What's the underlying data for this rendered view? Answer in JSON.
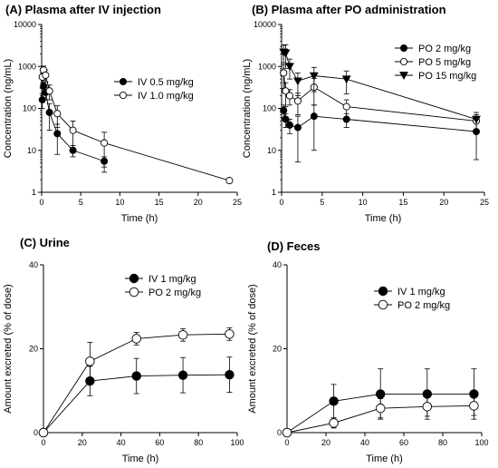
{
  "chart_data": [
    {
      "id": "A",
      "type": "line",
      "title": "(A) Plasma after IV injection",
      "xlabel": "Time (h)",
      "ylabel": "Concentration (ng/mL)",
      "yscale": "log",
      "xlim": [
        0,
        25
      ],
      "ylim": [
        1,
        10000
      ],
      "xticks": [
        0,
        5,
        10,
        15,
        20,
        25
      ],
      "yticks": [
        1,
        10,
        100,
        1000,
        10000
      ],
      "ytick_labels": [
        "1",
        "10",
        "100",
        "1000",
        "10000"
      ],
      "legend_position": "right",
      "series": [
        {
          "name": "IV 0.5  mg/kg",
          "marker": "filled-circle",
          "x": [
            0.083,
            0.25,
            0.5,
            1,
            2,
            4,
            8
          ],
          "y": [
            160,
            340,
            240,
            80,
            25,
            10,
            5.5
          ],
          "err": [
            60,
            120,
            80,
            50,
            17,
            3,
            1.5
          ]
        },
        {
          "name": "IV 1.0 mg/kg",
          "marker": "open-circle",
          "x": [
            0.083,
            0.25,
            0.5,
            1,
            2,
            4,
            8,
            24
          ],
          "y": [
            560,
            820,
            620,
            260,
            75,
            30,
            15,
            1.9
          ],
          "err": [
            250,
            200,
            200,
            100,
            40,
            20,
            12,
            0.2
          ]
        }
      ]
    },
    {
      "id": "B",
      "type": "line",
      "title": "(B) Plasma after PO administration",
      "xlabel": "Time (h)",
      "ylabel": "Concentration (ng/mL)",
      "yscale": "log",
      "xlim": [
        0,
        25
      ],
      "ylim": [
        1,
        10000
      ],
      "xticks": [
        0,
        5,
        10,
        15,
        20,
        25
      ],
      "yticks": [
        1,
        10,
        100,
        1000,
        10000
      ],
      "ytick_labels": [
        "1",
        "10",
        "100",
        "1000",
        "10000"
      ],
      "legend_position": "top-right",
      "series": [
        {
          "name": "PO 2 mg/kg",
          "marker": "filled-circle",
          "x": [
            0.25,
            0.5,
            1,
            2,
            4,
            8,
            24
          ],
          "y": [
            90,
            55,
            40,
            35,
            65,
            55,
            28
          ],
          "err": [
            30,
            20,
            15,
            30,
            55,
            20,
            22
          ]
        },
        {
          "name": "PO 5 mg/kg",
          "marker": "open-circle",
          "x": [
            0.25,
            0.5,
            1,
            2,
            4,
            8,
            24
          ],
          "y": [
            700,
            260,
            200,
            150,
            320,
            110,
            50
          ],
          "err": [
            400,
            150,
            80,
            80,
            200,
            50,
            20
          ]
        },
        {
          "name": "PO 15 mg/kg",
          "marker": "filled-triangle-down",
          "x": [
            0.25,
            0.5,
            1,
            2,
            4,
            8,
            24
          ],
          "y": [
            2200,
            2100,
            1000,
            450,
            600,
            500,
            55
          ],
          "err": [
            1000,
            1200,
            500,
            250,
            350,
            280,
            25
          ]
        }
      ]
    },
    {
      "id": "C",
      "type": "line",
      "title": "(C) Urine",
      "xlabel": "Time (h)",
      "ylabel": "Amount excreted (% of dose)",
      "yscale": "linear",
      "xlim": [
        0,
        100
      ],
      "ylim": [
        0,
        40
      ],
      "xticks": [
        0,
        20,
        40,
        60,
        80,
        100
      ],
      "yticks": [
        0,
        20,
        40
      ],
      "ytick_labels": [
        "0",
        "20",
        "40"
      ],
      "legend_position": "top-right",
      "series": [
        {
          "name": "IV 1 mg/kg",
          "marker": "filled-circle",
          "x": [
            0,
            24,
            48,
            72,
            96
          ],
          "y": [
            0,
            12.3,
            13.5,
            13.7,
            13.8
          ],
          "err": [
            0,
            3.5,
            4.2,
            4.2,
            4.2
          ]
        },
        {
          "name": "PO 2 mg/kg",
          "marker": "open-circle",
          "x": [
            0,
            24,
            48,
            72,
            96
          ],
          "y": [
            0,
            17,
            22.4,
            23.3,
            23.5
          ],
          "err": [
            0,
            4.5,
            1.5,
            1.5,
            1.5
          ]
        }
      ]
    },
    {
      "id": "D",
      "type": "line",
      "title": "(D) Feces",
      "xlabel": "Time (h)",
      "ylabel": "Amount excreted (% of dose)",
      "yscale": "linear",
      "xlim": [
        0,
        100
      ],
      "ylim": [
        0,
        40
      ],
      "xticks": [
        0,
        20,
        40,
        60,
        80,
        100
      ],
      "yticks": [
        0,
        20,
        40
      ],
      "ytick_labels": [
        "0",
        "20",
        "40"
      ],
      "legend_position": "top-right",
      "series": [
        {
          "name": "IV 1 mg/kg",
          "marker": "filled-circle",
          "x": [
            0,
            24,
            48,
            72,
            96
          ],
          "y": [
            0,
            7.5,
            9.2,
            9.2,
            9.2
          ],
          "err": [
            0,
            4,
            6,
            6,
            6
          ]
        },
        {
          "name": "PO 2 mg/kg",
          "marker": "open-circle",
          "x": [
            0,
            24,
            48,
            72,
            96
          ],
          "y": [
            0,
            2.3,
            5.8,
            6.2,
            6.4
          ],
          "err": [
            0,
            1.2,
            2.3,
            2.3,
            2.3
          ]
        }
      ]
    }
  ]
}
